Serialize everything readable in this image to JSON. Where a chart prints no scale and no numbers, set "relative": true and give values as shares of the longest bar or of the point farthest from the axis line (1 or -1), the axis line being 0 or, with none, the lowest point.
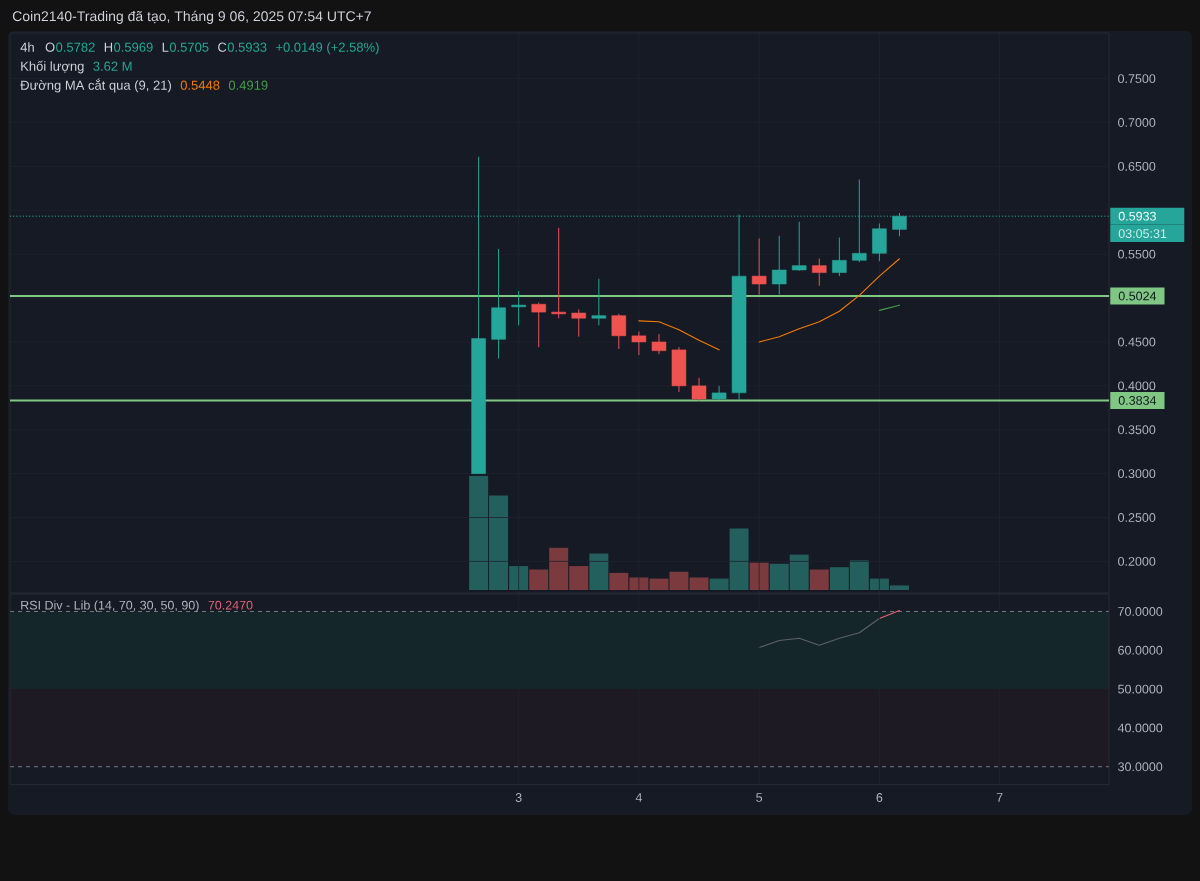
{
  "chart_data": [
    {
      "type": "candlestick",
      "x": [
        2.667,
        2.833,
        3,
        3.167,
        3.333,
        3.5,
        3.667,
        3.833,
        4,
        4.167,
        4.333,
        4.5,
        4.667,
        4.833,
        5,
        5.167,
        5.333,
        5.5,
        5.667,
        5.833,
        6,
        6.167
      ],
      "ohlc": [
        [
          0.3,
          0.661,
          0.3,
          0.454
        ],
        [
          0.453,
          0.556,
          0.431,
          0.489
        ],
        [
          0.49,
          0.508,
          0.469,
          0.492
        ],
        [
          0.493,
          0.495,
          0.444,
          0.484
        ],
        [
          0.484,
          0.58,
          0.477,
          0.482
        ],
        [
          0.483,
          0.487,
          0.456,
          0.477
        ],
        [
          0.477,
          0.522,
          0.469,
          0.48
        ],
        [
          0.48,
          0.482,
          0.442,
          0.457
        ],
        [
          0.457,
          0.462,
          0.435,
          0.45
        ],
        [
          0.45,
          0.459,
          0.436,
          0.44
        ],
        [
          0.441,
          0.444,
          0.393,
          0.4
        ],
        [
          0.4,
          0.409,
          0.383,
          0.385
        ],
        [
          0.385,
          0.4,
          0.384,
          0.392
        ],
        [
          0.392,
          0.595,
          0.384,
          0.525
        ],
        [
          0.525,
          0.568,
          0.504,
          0.516
        ],
        [
          0.516,
          0.571,
          0.504,
          0.532
        ],
        [
          0.532,
          0.587,
          0.531,
          0.537
        ],
        [
          0.537,
          0.545,
          0.514,
          0.529
        ],
        [
          0.529,
          0.569,
          0.525,
          0.543
        ],
        [
          0.543,
          0.635,
          0.541,
          0.551
        ],
        [
          0.551,
          0.585,
          0.542,
          0.579
        ],
        [
          0.5782,
          0.5969,
          0.5705,
          0.5933
        ]
      ],
      "colors": [
        "#26a69a",
        "#26a69a",
        "#26a69a",
        "#ef5350",
        "#ef5350",
        "#ef5350",
        "#26a69a",
        "#ef5350",
        "#ef5350",
        "#ef5350",
        "#ef5350",
        "#ef5350",
        "#26a69a",
        "#26a69a",
        "#ef5350",
        "#26a69a",
        "#26a69a",
        "#ef5350",
        "#26a69a",
        "#26a69a",
        "#26a69a",
        "#26a69a"
      ],
      "series": [
        {
          "type": "line",
          "color": "#f57c00",
          "x": [
            4,
            4.167,
            4.333,
            4.5,
            4.667,
            4.833,
            5,
            5.167,
            5.333,
            5.5,
            5.667,
            5.833,
            6,
            6.167
          ],
          "values": [
            0.474,
            0.473,
            0.464,
            0.452,
            0.441,
            null,
            0.45,
            0.456,
            0.465,
            0.473,
            0.485,
            0.503,
            0.525,
            0.5448
          ]
        },
        {
          "type": "line",
          "color": "#43a047",
          "x": [
            6,
            6.167
          ],
          "values": [
            0.486,
            0.4919
          ]
        }
      ],
      "xlim": [
        -1.23,
        7.91
      ],
      "xticks": [
        3,
        4,
        5,
        6,
        7
      ],
      "ylim": [
        0.164,
        0.802
      ],
      "yticks": [
        {
          "value": 0.2,
          "label": "0.2000"
        },
        {
          "value": 0.25,
          "label": "0.2500"
        },
        {
          "value": 0.3,
          "label": "0.3000"
        },
        {
          "value": 0.35,
          "label": "0.3500"
        },
        {
          "value": 0.4,
          "label": "0.4000"
        },
        {
          "value": 0.45,
          "label": "0.4500"
        },
        {
          "value": 0.5,
          "label": null
        },
        {
          "value": 0.55,
          "label": "0.5500"
        },
        {
          "value": 0.6,
          "label": null
        },
        {
          "value": 0.65,
          "label": "0.6500"
        },
        {
          "value": 0.7,
          "label": "0.7000"
        },
        {
          "value": 0.75,
          "label": "0.7500"
        }
      ],
      "grid": true,
      "tick_labels": "y",
      "ref_lines": [
        {
          "axis": "y",
          "value": 0.5933,
          "label": "0.5933",
          "color": "#26a69a",
          "line_style": "dotted"
        },
        {
          "axis": "y",
          "value": 0.5024,
          "label": "0.5024",
          "color": "#81c784",
          "line_style": "solid"
        },
        {
          "axis": "y",
          "value": 0.3834,
          "label": "0.3834",
          "color": "#81c784",
          "line_style": "solid"
        }
      ],
      "annotations": [
        "Coin2140-Trading đã tạo, Tháng 9 06, 2025 07:54 UTC+7",
        "4h",
        "O",
        "0.5782",
        "H",
        "0.5969",
        "L",
        "0.5705",
        "C",
        "0.5933",
        "+0.0149 (+2.58%)",
        "Khối lượng",
        "3.62 M",
        "Đường MA cắt qua (9, 21)",
        "0.5448",
        "0.4919",
        "03:05:31"
      ]
    },
    {
      "type": "bar",
      "relative": true,
      "x": [
        2.667,
        2.833,
        3,
        3.167,
        3.333,
        3.5,
        3.667,
        3.833,
        4,
        4.167,
        4.333,
        4.5,
        4.667,
        4.833,
        5,
        5.167,
        5.333,
        5.5,
        5.667,
        5.833,
        6,
        6.167
      ],
      "values": [
        1,
        0.83,
        0.21,
        0.18,
        0.37,
        0.21,
        0.32,
        0.15,
        0.11,
        0.1,
        0.16,
        0.11,
        0.1,
        0.54,
        0.24,
        0.23,
        0.31,
        0.18,
        0.2,
        0.26,
        0.1,
        0.04
      ],
      "colors": [
        "#235f5c",
        "#235f5c",
        "#235f5c",
        "#7b3a3e",
        "#7b3a3e",
        "#7b3a3e",
        "#235f5c",
        "#7b3a3e",
        "#7b3a3e",
        "#7b3a3e",
        "#7b3a3e",
        "#7b3a3e",
        "#235f5c",
        "#235f5c",
        "#7b3a3e",
        "#235f5c",
        "#235f5c",
        "#7b3a3e",
        "#235f5c",
        "#235f5c",
        "#235f5c",
        "#235f5c"
      ],
      "xlim": [
        -1.23,
        7.91
      ],
      "tick_labels": false
    },
    {
      "type": "line",
      "series": [
        {
          "color": "#5d606b",
          "x": [
            5,
            5.167,
            5.333,
            5.5,
            5.667,
            5.833,
            6
          ],
          "values": [
            60.7,
            62.5,
            63.1,
            61.3,
            63.1,
            64.5,
            68.2
          ]
        },
        {
          "color": "#ef5f73",
          "x": [
            6,
            6.167
          ],
          "values": [
            68.2,
            70.247
          ]
        }
      ],
      "xlim": [
        -1.23,
        7.91
      ],
      "xticks": [
        3,
        4,
        5,
        6,
        7
      ],
      "ylim": [
        25.4,
        74.5
      ],
      "yticks": [
        {
          "value": 30,
          "label": "30.0000"
        },
        {
          "value": 40,
          "label": "40.0000"
        },
        {
          "value": 50,
          "label": "50.0000"
        },
        {
          "value": 60,
          "label": "60.0000"
        },
        {
          "value": 70,
          "label": "70.0000"
        }
      ],
      "grid": "x",
      "bands": [
        {
          "axis": "y",
          "from": 50,
          "to": 70,
          "color": "#142629"
        },
        {
          "axis": "y",
          "from": 30,
          "to": 50,
          "color": "#1d1a24"
        }
      ],
      "ref_lines": [
        {
          "axis": "y",
          "value": 70,
          "color": "#787b86",
          "line_style": "dashed"
        },
        {
          "axis": "y",
          "value": 30,
          "color": "#787b86",
          "line_style": "dashed"
        }
      ],
      "annotations": [
        "RSI Div - Lib (14, 70, 30, 50, 90)",
        "70.2470"
      ]
    }
  ]
}
